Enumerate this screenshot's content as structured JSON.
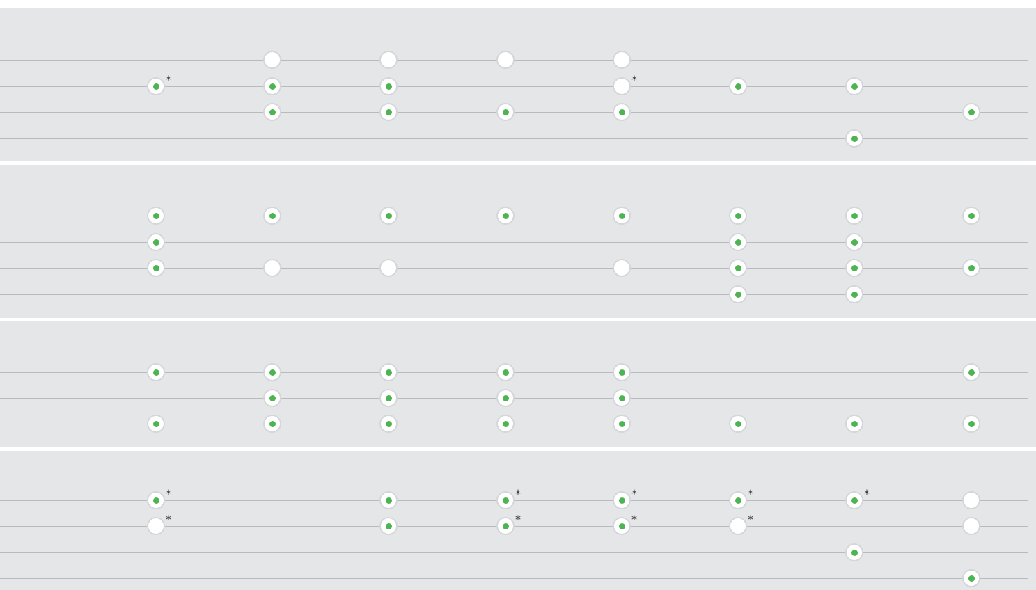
{
  "colors": {
    "panel_background": "#e5e6e8",
    "row_line": "#b8babd",
    "node_fill": "#ffffff",
    "node_border": "#d4d6d9",
    "dot_active": "#4cb551",
    "marker": "#333333"
  },
  "marker_symbol": "*",
  "panels": [
    {
      "id": "panel-1",
      "rows": [
        {
          "nodes": [
            {
              "col": 2,
              "active": false
            },
            {
              "col": 3,
              "active": false
            },
            {
              "col": 4,
              "active": false
            },
            {
              "col": 5,
              "active": false
            }
          ]
        },
        {
          "nodes": [
            {
              "col": 1,
              "active": true,
              "marked": true
            },
            {
              "col": 2,
              "active": true
            },
            {
              "col": 3,
              "active": true
            },
            {
              "col": 5,
              "active": false,
              "marked": true
            },
            {
              "col": 6,
              "active": true
            },
            {
              "col": 7,
              "active": true
            }
          ]
        },
        {
          "nodes": [
            {
              "col": 2,
              "active": true
            },
            {
              "col": 3,
              "active": true
            },
            {
              "col": 4,
              "active": true
            },
            {
              "col": 5,
              "active": true
            },
            {
              "col": 8,
              "active": true
            }
          ]
        },
        {
          "nodes": [
            {
              "col": 7,
              "active": true
            }
          ]
        }
      ]
    },
    {
      "id": "panel-2",
      "rows": [
        {
          "nodes": [
            {
              "col": 1,
              "active": true
            },
            {
              "col": 2,
              "active": true
            },
            {
              "col": 3,
              "active": true
            },
            {
              "col": 4,
              "active": true
            },
            {
              "col": 5,
              "active": true
            },
            {
              "col": 6,
              "active": true
            },
            {
              "col": 7,
              "active": true
            },
            {
              "col": 8,
              "active": true
            }
          ]
        },
        {
          "nodes": [
            {
              "col": 1,
              "active": true
            },
            {
              "col": 6,
              "active": true
            },
            {
              "col": 7,
              "active": true
            }
          ]
        },
        {
          "nodes": [
            {
              "col": 1,
              "active": true
            },
            {
              "col": 2,
              "active": false
            },
            {
              "col": 3,
              "active": false
            },
            {
              "col": 5,
              "active": false
            },
            {
              "col": 6,
              "active": true
            },
            {
              "col": 7,
              "active": true
            },
            {
              "col": 8,
              "active": true
            }
          ]
        },
        {
          "nodes": [
            {
              "col": 6,
              "active": true
            },
            {
              "col": 7,
              "active": true
            }
          ]
        }
      ]
    },
    {
      "id": "panel-3",
      "rows": [
        {
          "nodes": [
            {
              "col": 1,
              "active": true
            },
            {
              "col": 2,
              "active": true
            },
            {
              "col": 3,
              "active": true
            },
            {
              "col": 4,
              "active": true
            },
            {
              "col": 5,
              "active": true
            },
            {
              "col": 8,
              "active": true
            }
          ]
        },
        {
          "nodes": [
            {
              "col": 2,
              "active": true
            },
            {
              "col": 3,
              "active": true
            },
            {
              "col": 4,
              "active": true
            },
            {
              "col": 5,
              "active": true
            }
          ]
        },
        {
          "nodes": [
            {
              "col": 1,
              "active": true
            },
            {
              "col": 2,
              "active": true
            },
            {
              "col": 3,
              "active": true
            },
            {
              "col": 4,
              "active": true
            },
            {
              "col": 5,
              "active": true
            },
            {
              "col": 6,
              "active": true
            },
            {
              "col": 7,
              "active": true
            },
            {
              "col": 8,
              "active": true
            }
          ]
        }
      ]
    },
    {
      "id": "panel-4",
      "rows": [
        {
          "nodes": [
            {
              "col": 1,
              "active": true,
              "marked": true
            },
            {
              "col": 3,
              "active": true
            },
            {
              "col": 4,
              "active": true,
              "marked": true
            },
            {
              "col": 5,
              "active": true,
              "marked": true
            },
            {
              "col": 6,
              "active": true,
              "marked": true
            },
            {
              "col": 7,
              "active": true,
              "marked": true
            },
            {
              "col": 8,
              "active": false
            }
          ]
        },
        {
          "nodes": [
            {
              "col": 1,
              "active": false,
              "marked": true
            },
            {
              "col": 3,
              "active": true
            },
            {
              "col": 4,
              "active": true,
              "marked": true
            },
            {
              "col": 5,
              "active": true,
              "marked": true
            },
            {
              "col": 6,
              "active": false,
              "marked": true
            },
            {
              "col": 8,
              "active": false
            }
          ]
        },
        {
          "nodes": [
            {
              "col": 7,
              "active": true
            }
          ]
        },
        {
          "nodes": [
            {
              "col": 8,
              "active": true
            }
          ]
        }
      ]
    }
  ]
}
